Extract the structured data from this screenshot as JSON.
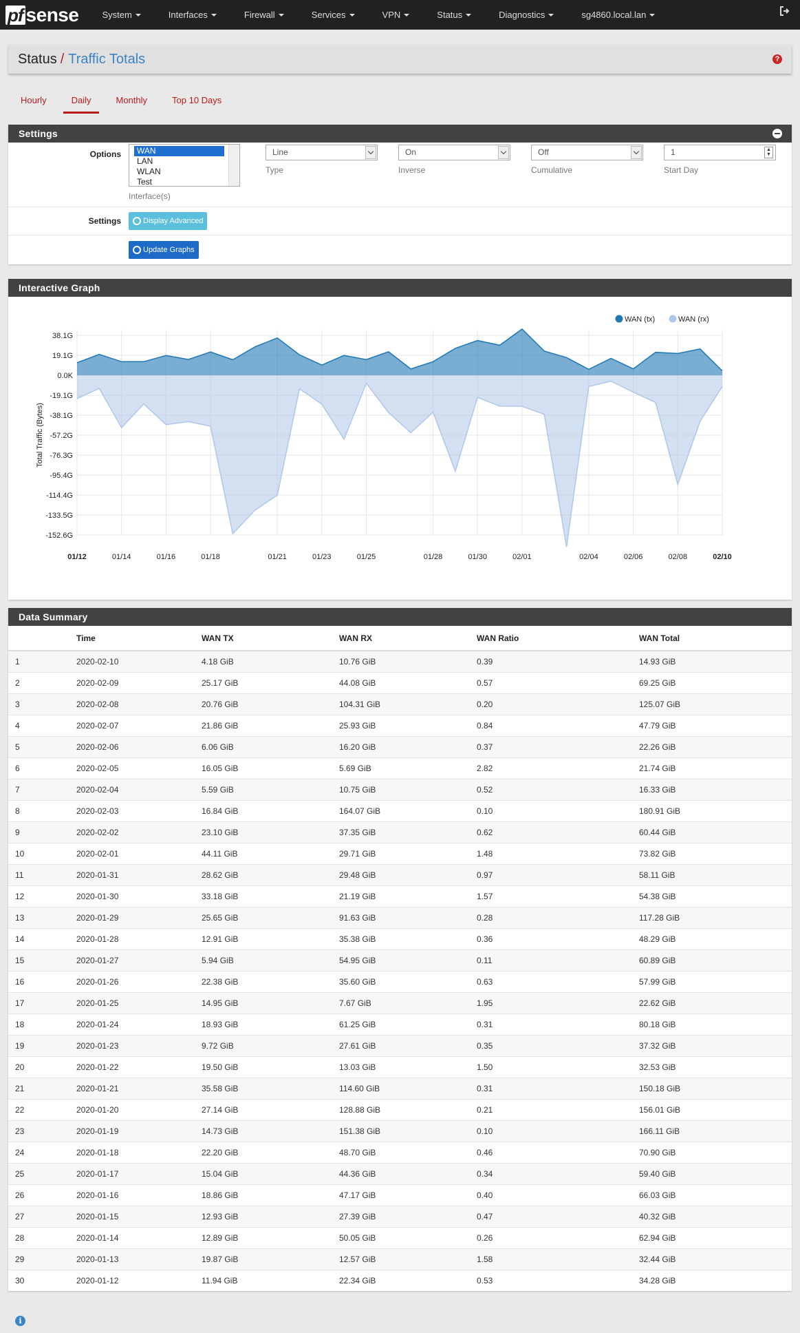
{
  "brand": {
    "pf": "pf",
    "sense": "sense"
  },
  "nav": {
    "items": [
      "System",
      "Interfaces",
      "Firewall",
      "Services",
      "VPN",
      "Status",
      "Diagnostics",
      "sg4860.local.lan"
    ]
  },
  "breadcrumb": {
    "section": "Status",
    "separator": "/",
    "page": "Traffic Totals"
  },
  "tabs": [
    {
      "label": "Hourly",
      "active": false
    },
    {
      "label": "Daily",
      "active": true
    },
    {
      "label": "Monthly",
      "active": false
    },
    {
      "label": "Top 10 Days",
      "active": false
    }
  ],
  "settings": {
    "title": "Settings",
    "options_label": "Options",
    "interfaces": [
      "WAN",
      "LAN",
      "WLAN",
      "Test"
    ],
    "interfaces_selected": "WAN",
    "interfaces_label": "Interface(s)",
    "type_value": "Line",
    "type_label": "Type",
    "inverse_value": "On",
    "inverse_label": "Inverse",
    "cumulative_value": "Off",
    "cumulative_label": "Cumulative",
    "start_day_value": "1",
    "start_day_label": "Start Day",
    "settings_label": "Settings",
    "display_advanced": "Display Advanced",
    "update_graphs": "Update Graphs"
  },
  "graph": {
    "title": "Interactive Graph",
    "legend": [
      {
        "name": "WAN (tx)",
        "color": "#1f77b4"
      },
      {
        "name": "WAN (rx)",
        "color": "#aec7e8"
      }
    ]
  },
  "chart_data": {
    "type": "area",
    "ylabel": "Total Traffic (Bytes)",
    "y_ticks": [
      "38.1G",
      "19.1G",
      "0.0K",
      "-19.1G",
      "-38.1G",
      "-57.2G",
      "-76.3G",
      "-95.4G",
      "-114.4G",
      "-133.5G",
      "-152.6G"
    ],
    "ylim": [
      -152.6,
      38.1
    ],
    "x_ticks": [
      "01/12",
      "01/14",
      "01/16",
      "01/18",
      "01/21",
      "01/23",
      "01/25",
      "01/28",
      "01/30",
      "02/01",
      "02/04",
      "02/06",
      "02/08",
      "02/10"
    ],
    "x": [
      "01/12",
      "01/13",
      "01/14",
      "01/15",
      "01/16",
      "01/17",
      "01/18",
      "01/19",
      "01/20",
      "01/21",
      "01/22",
      "01/23",
      "01/24",
      "01/25",
      "01/26",
      "01/27",
      "01/28",
      "01/29",
      "01/30",
      "01/31",
      "02/01",
      "02/02",
      "02/03",
      "02/04",
      "02/05",
      "02/06",
      "02/07",
      "02/08",
      "02/09",
      "02/10"
    ],
    "series": [
      {
        "name": "WAN (tx)",
        "values": [
          11.94,
          19.87,
          12.89,
          12.93,
          18.86,
          15.04,
          22.2,
          14.73,
          27.14,
          35.58,
          19.5,
          9.72,
          18.93,
          14.95,
          22.38,
          5.94,
          12.91,
          25.65,
          33.18,
          28.62,
          44.11,
          23.1,
          16.84,
          5.59,
          16.05,
          6.06,
          21.86,
          20.76,
          25.17,
          4.18
        ]
      },
      {
        "name": "WAN (rx)",
        "values": [
          -22.34,
          -12.57,
          -50.05,
          -27.39,
          -47.17,
          -44.36,
          -48.7,
          -151.38,
          -128.88,
          -114.6,
          -13.03,
          -27.61,
          -61.25,
          -7.67,
          -35.6,
          -54.95,
          -35.38,
          -91.63,
          -21.19,
          -29.48,
          -29.71,
          -37.35,
          -164.07,
          -10.75,
          -5.69,
          -16.2,
          -25.93,
          -104.31,
          -44.08,
          -10.76
        ]
      }
    ]
  },
  "summary": {
    "title": "Data Summary",
    "columns": [
      "",
      "Time",
      "WAN TX",
      "WAN RX",
      "WAN Ratio",
      "WAN Total"
    ],
    "rows": [
      [
        "1",
        "2020-02-10",
        "4.18 GiB",
        "10.76 GiB",
        "0.39",
        "14.93 GiB"
      ],
      [
        "2",
        "2020-02-09",
        "25.17 GiB",
        "44.08 GiB",
        "0.57",
        "69.25 GiB"
      ],
      [
        "3",
        "2020-02-08",
        "20.76 GiB",
        "104.31 GiB",
        "0.20",
        "125.07 GiB"
      ],
      [
        "4",
        "2020-02-07",
        "21.86 GiB",
        "25.93 GiB",
        "0.84",
        "47.79 GiB"
      ],
      [
        "5",
        "2020-02-06",
        "6.06 GiB",
        "16.20 GiB",
        "0.37",
        "22.26 GiB"
      ],
      [
        "6",
        "2020-02-05",
        "16.05 GiB",
        "5.69 GiB",
        "2.82",
        "21.74 GiB"
      ],
      [
        "7",
        "2020-02-04",
        "5.59 GiB",
        "10.75 GiB",
        "0.52",
        "16.33 GiB"
      ],
      [
        "8",
        "2020-02-03",
        "16.84 GiB",
        "164.07 GiB",
        "0.10",
        "180.91 GiB"
      ],
      [
        "9",
        "2020-02-02",
        "23.10 GiB",
        "37.35 GiB",
        "0.62",
        "60.44 GiB"
      ],
      [
        "10",
        "2020-02-01",
        "44.11 GiB",
        "29.71 GiB",
        "1.48",
        "73.82 GiB"
      ],
      [
        "11",
        "2020-01-31",
        "28.62 GiB",
        "29.48 GiB",
        "0.97",
        "58.11 GiB"
      ],
      [
        "12",
        "2020-01-30",
        "33.18 GiB",
        "21.19 GiB",
        "1.57",
        "54.38 GiB"
      ],
      [
        "13",
        "2020-01-29",
        "25.65 GiB",
        "91.63 GiB",
        "0.28",
        "117.28 GiB"
      ],
      [
        "14",
        "2020-01-28",
        "12.91 GiB",
        "35.38 GiB",
        "0.36",
        "48.29 GiB"
      ],
      [
        "15",
        "2020-01-27",
        "5.94 GiB",
        "54.95 GiB",
        "0.11",
        "60.89 GiB"
      ],
      [
        "16",
        "2020-01-26",
        "22.38 GiB",
        "35.60 GiB",
        "0.63",
        "57.99 GiB"
      ],
      [
        "17",
        "2020-01-25",
        "14.95 GiB",
        "7.67 GiB",
        "1.95",
        "22.62 GiB"
      ],
      [
        "18",
        "2020-01-24",
        "18.93 GiB",
        "61.25 GiB",
        "0.31",
        "80.18 GiB"
      ],
      [
        "19",
        "2020-01-23",
        "9.72 GiB",
        "27.61 GiB",
        "0.35",
        "37.32 GiB"
      ],
      [
        "20",
        "2020-01-22",
        "19.50 GiB",
        "13.03 GiB",
        "1.50",
        "32.53 GiB"
      ],
      [
        "21",
        "2020-01-21",
        "35.58 GiB",
        "114.60 GiB",
        "0.31",
        "150.18 GiB"
      ],
      [
        "22",
        "2020-01-20",
        "27.14 GiB",
        "128.88 GiB",
        "0.21",
        "156.01 GiB"
      ],
      [
        "23",
        "2020-01-19",
        "14.73 GiB",
        "151.38 GiB",
        "0.10",
        "166.11 GiB"
      ],
      [
        "24",
        "2020-01-18",
        "22.20 GiB",
        "48.70 GiB",
        "0.46",
        "70.90 GiB"
      ],
      [
        "25",
        "2020-01-17",
        "15.04 GiB",
        "44.36 GiB",
        "0.34",
        "59.40 GiB"
      ],
      [
        "26",
        "2020-01-16",
        "18.86 GiB",
        "47.17 GiB",
        "0.40",
        "66.03 GiB"
      ],
      [
        "27",
        "2020-01-15",
        "12.93 GiB",
        "27.39 GiB",
        "0.47",
        "40.32 GiB"
      ],
      [
        "28",
        "2020-01-14",
        "12.89 GiB",
        "50.05 GiB",
        "0.26",
        "62.94 GiB"
      ],
      [
        "29",
        "2020-01-13",
        "19.87 GiB",
        "12.57 GiB",
        "1.58",
        "32.44 GiB"
      ],
      [
        "30",
        "2020-01-12",
        "11.94 GiB",
        "22.34 GiB",
        "0.53",
        "34.28 GiB"
      ]
    ]
  }
}
